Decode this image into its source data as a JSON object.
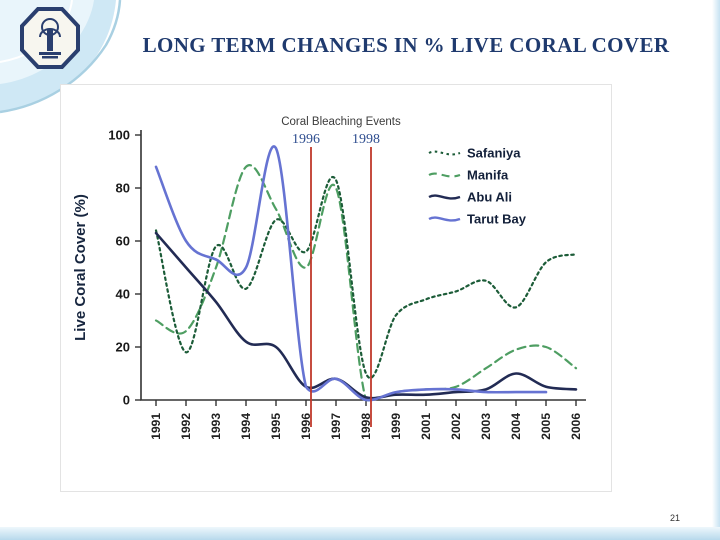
{
  "slide": {
    "title": "LONG TERM CHANGES IN % LIVE CORAL COVER",
    "page_number": "21"
  },
  "chart_data": {
    "type": "line",
    "title": "",
    "xlabel": "",
    "ylabel": "Live Coral Cover (%)",
    "ylim": [
      0,
      100
    ],
    "yticks": [
      0,
      20,
      40,
      60,
      80,
      100
    ],
    "grid": false,
    "legend_position": "top-right",
    "categories": [
      "1991",
      "1992",
      "1993",
      "1994",
      "1995",
      "1996",
      "1997",
      "1998",
      "1999",
      "2001",
      "2002",
      "2003",
      "2004",
      "2005",
      "2006"
    ],
    "annotation": {
      "label": "Coral Bleaching Events",
      "event_years": [
        "1996",
        "1998"
      ],
      "event_line_color": "#c0392b",
      "year_label_color": "#2e4d8f"
    },
    "series": [
      {
        "name": "Safaniya",
        "color": "#1c5c38",
        "line_style": "dotted",
        "values": [
          64,
          18,
          58,
          42,
          68,
          56,
          83,
          10,
          32,
          38,
          41,
          45,
          35,
          52,
          55
        ]
      },
      {
        "name": "Manifa",
        "color": "#4e9e62",
        "line_style": "dashed",
        "values": [
          30,
          26,
          50,
          88,
          72,
          50,
          80,
          0,
          3,
          4,
          5,
          12,
          19,
          20,
          12
        ]
      },
      {
        "name": "Abu Ali",
        "color": "#222b54",
        "line_style": "solid",
        "values": [
          63,
          50,
          37,
          22,
          20,
          5,
          8,
          1,
          2,
          2,
          3,
          4,
          10,
          5,
          4
        ]
      },
      {
        "name": "Tarut Bay",
        "color": "#6673d2",
        "line_style": "solid",
        "values": [
          88,
          60,
          53,
          50,
          95,
          5,
          8,
          0,
          3,
          4,
          4,
          3,
          3,
          3,
          null
        ]
      }
    ]
  }
}
